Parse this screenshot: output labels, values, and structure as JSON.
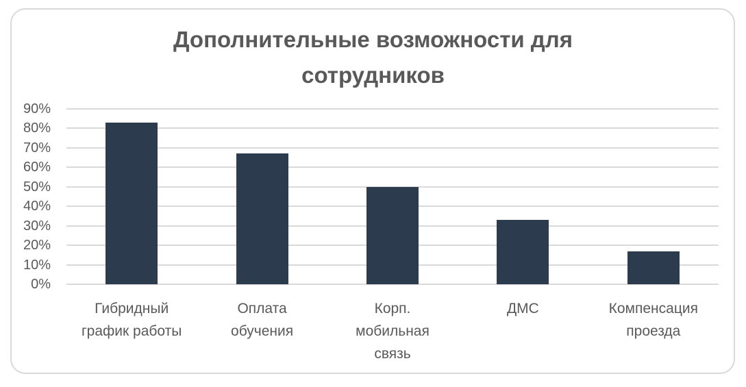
{
  "chart_data": {
    "type": "bar",
    "title": "Дополнительные возможности для сотрудников",
    "title_lines": [
      "Дополнительные возможности для",
      "сотрудников"
    ],
    "categories": [
      "Гибридный график работы",
      "Оплата обучения",
      "Корп. мобильная связь",
      "ДМС",
      "Компенсация проезда"
    ],
    "category_lines": [
      [
        "Гибридный",
        "график работы"
      ],
      [
        "Оплата",
        "обучения"
      ],
      [
        "Корп.",
        "мобильная",
        "связь"
      ],
      [
        "ДМС"
      ],
      [
        "Компенсация",
        "проезда"
      ]
    ],
    "values": [
      83,
      67,
      50,
      33,
      17
    ],
    "unit": "%",
    "xlabel": "",
    "ylabel": "",
    "ylim": [
      0,
      90
    ],
    "yticks": [
      "90%",
      "80%",
      "70%",
      "60%",
      "50%",
      "40%",
      "30%",
      "20%",
      "10%",
      "0%"
    ],
    "grid": true,
    "legend": null,
    "bar_color": "#2d3b4e"
  }
}
